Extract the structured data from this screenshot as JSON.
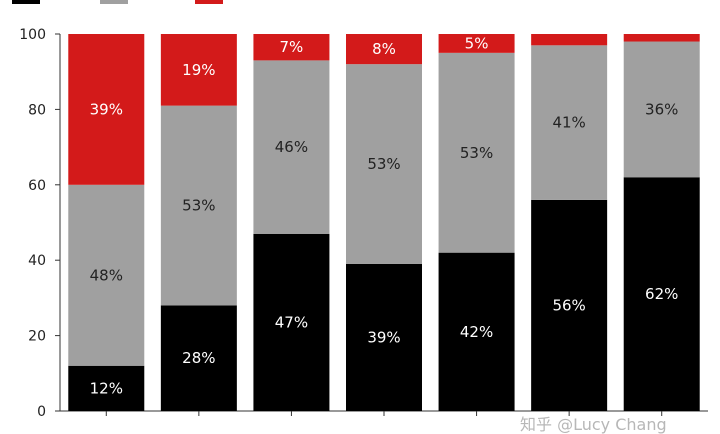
{
  "chart_data": {
    "type": "bar",
    "stacked": true,
    "categories": [
      "",
      "",
      "",
      "",
      "",
      "",
      ""
    ],
    "series": [
      {
        "name": "",
        "color": "#000000",
        "values": [
          12,
          28,
          47,
          39,
          42,
          56,
          62
        ]
      },
      {
        "name": "",
        "color": "#a0a0a0",
        "values": [
          48,
          53,
          46,
          53,
          53,
          41,
          36
        ]
      },
      {
        "name": "",
        "color": "#d31a1a",
        "values": [
          39,
          19,
          7,
          8,
          5,
          3,
          3
        ]
      }
    ],
    "labels": [
      [
        "12%",
        "28%",
        "47%",
        "39%",
        "42%",
        "56%",
        "62%"
      ],
      [
        "48%",
        "53%",
        "46%",
        "53%",
        "53%",
        "41%",
        "36%"
      ],
      [
        "39%",
        "19%",
        "7%",
        "8%",
        "5%",
        "",
        ""
      ]
    ],
    "label_colors": [
      "#ffffff",
      "#222222",
      "#ffffff"
    ],
    "ylim": [
      0,
      100
    ],
    "yticks": [
      0,
      20,
      40,
      60,
      80,
      100
    ],
    "title": "",
    "xlabel": "",
    "ylabel": "",
    "legend_position": "top-left",
    "grid": false
  },
  "watermark": "知乎 @Lucy Chang"
}
